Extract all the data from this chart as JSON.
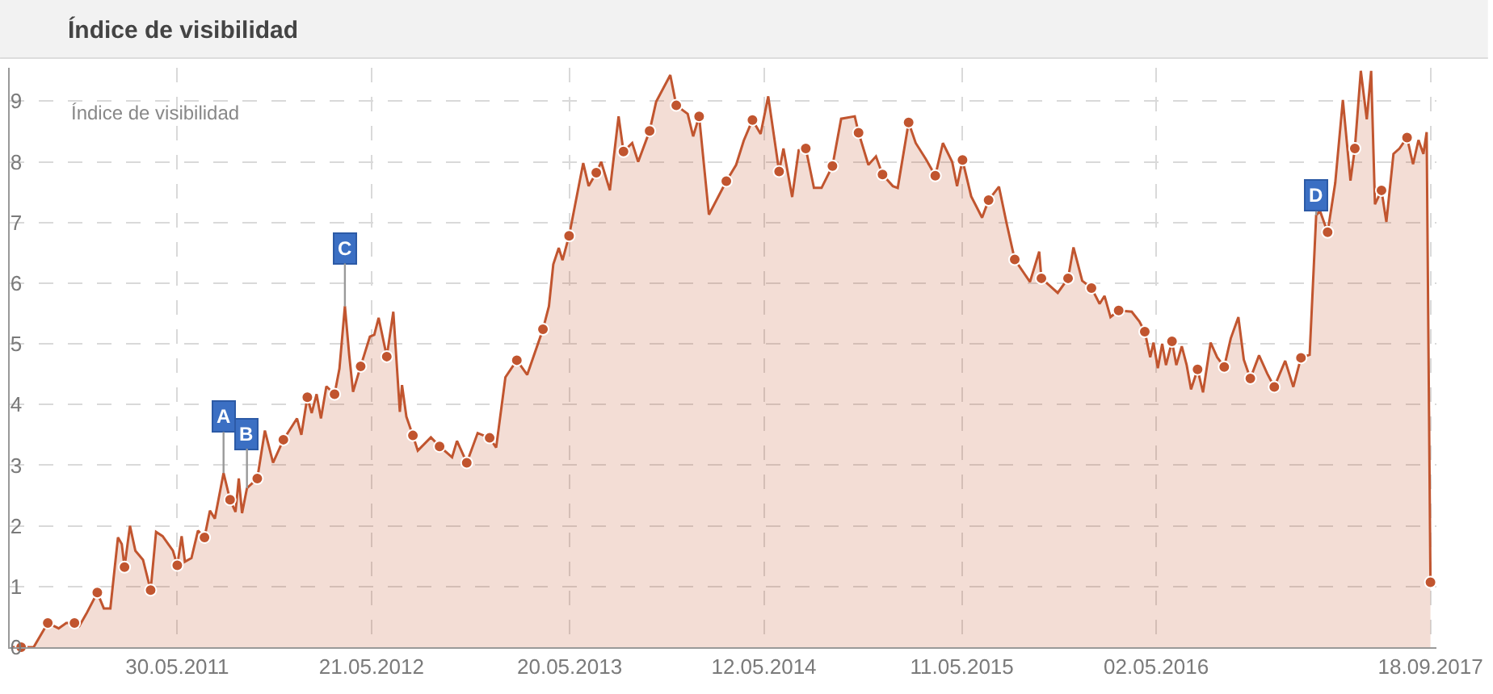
{
  "chart_data": {
    "type": "area",
    "title": "Índice de visibilidad",
    "annotations": [
      "Índice de visibilidad",
      {
        "text": "A",
        "x": "2011-08-23",
        "y": 2.87
      },
      {
        "text": "B",
        "x": "2011-10-05",
        "y": 2.62
      },
      {
        "text": "C",
        "x": "2012-04-02",
        "y": 5.62
      },
      {
        "text": "D",
        "x": "2017-02-20",
        "y": 7.12
      }
    ],
    "xlim": [
      "2010-07-26",
      "2017-09-29"
    ],
    "xticks": [
      {
        "value": "2011-05-30",
        "label": "30.05.2011"
      },
      {
        "value": "2012-05-21",
        "label": "21.05.2012"
      },
      {
        "value": "2013-05-20",
        "label": "20.05.2013"
      },
      {
        "value": "2014-05-12",
        "label": "12.05.2014"
      },
      {
        "value": "2015-05-11",
        "label": "11.05.2015"
      },
      {
        "value": "2016-05-02",
        "label": "02.05.2016"
      },
      {
        "value": "2017-09-18",
        "label": "18.09.2017"
      }
    ],
    "ylim": [
      0,
      9.55
    ],
    "yticks": [
      0,
      1,
      2,
      3,
      4,
      5,
      6,
      7,
      8,
      9
    ],
    "grid": true,
    "series": [
      {
        "color": "#c1552f",
        "x": [
          "2010-07-29",
          "2010-08-16",
          "2010-09-08",
          "2010-10-04",
          "2010-10-24",
          "2010-11-07",
          "2010-11-22",
          "2010-12-01",
          "2010-12-15",
          "2011-01-03",
          "2011-01-15",
          "2011-01-27",
          "2011-02-10",
          "2011-02-17",
          "2011-02-22",
          "2011-03-04",
          "2011-03-14",
          "2011-03-28",
          "2011-04-11",
          "2011-04-21",
          "2011-05-03",
          "2011-05-22",
          "2011-05-30",
          "2011-06-07",
          "2011-06-13",
          "2011-06-25",
          "2011-07-07",
          "2011-07-19",
          "2011-07-29",
          "2011-08-07",
          "2011-08-23",
          "2011-09-04",
          "2011-09-14",
          "2011-09-20",
          "2011-09-26",
          "2011-10-05",
          "2011-10-24",
          "2011-11-07",
          "2011-11-22",
          "2011-12-11",
          "2012-01-05",
          "2012-01-13",
          "2012-01-24",
          "2012-02-01",
          "2012-02-10",
          "2012-02-18",
          "2012-02-28",
          "2012-03-14",
          "2012-03-23",
          "2012-04-02",
          "2012-04-10",
          "2012-04-17",
          "2012-05-01",
          "2012-05-18",
          "2012-05-26",
          "2012-06-03",
          "2012-06-18",
          "2012-06-30",
          "2012-07-12",
          "2012-07-16",
          "2012-07-24",
          "2012-08-05",
          "2012-08-14",
          "2012-09-07",
          "2012-09-23",
          "2012-10-16",
          "2012-10-25",
          "2012-11-12",
          "2012-12-02",
          "2012-12-24",
          "2013-01-05",
          "2013-01-22",
          "2013-02-12",
          "2013-03-03",
          "2013-04-01",
          "2013-04-12",
          "2013-04-20",
          "2013-04-30",
          "2013-05-07",
          "2013-05-19",
          "2013-06-14",
          "2013-06-24",
          "2013-07-08",
          "2013-07-17",
          "2013-08-02",
          "2013-08-18",
          "2013-08-27",
          "2013-09-12",
          "2013-09-23",
          "2013-10-14",
          "2013-10-26",
          "2013-11-21",
          "2013-12-02",
          "2013-12-23",
          "2014-01-02",
          "2014-01-13",
          "2014-01-31",
          "2014-03-04",
          "2014-03-22",
          "2014-04-05",
          "2014-04-21",
          "2014-05-06",
          "2014-05-20",
          "2014-06-09",
          "2014-06-17",
          "2014-07-03",
          "2014-07-15",
          "2014-07-28",
          "2014-08-12",
          "2014-08-26",
          "2014-09-15",
          "2014-10-01",
          "2014-10-26",
          "2014-11-02",
          "2014-11-20",
          "2014-12-04",
          "2014-12-16",
          "2015-01-04",
          "2015-01-13",
          "2015-02-02",
          "2015-02-15",
          "2015-03-06",
          "2015-03-23",
          "2015-04-06",
          "2015-04-23",
          "2015-05-02",
          "2015-05-12",
          "2015-05-28",
          "2015-06-17",
          "2015-06-29",
          "2015-07-18",
          "2015-08-01",
          "2015-08-16",
          "2015-09-13",
          "2015-09-30",
          "2015-10-04",
          "2015-11-03",
          "2015-11-22",
          "2015-12-02",
          "2015-12-18",
          "2016-01-04",
          "2016-01-19",
          "2016-01-28",
          "2016-02-08",
          "2016-02-23",
          "2016-03-18",
          "2016-04-01",
          "2016-04-11",
          "2016-04-21",
          "2016-04-27",
          "2016-05-05",
          "2016-05-13",
          "2016-05-20",
          "2016-05-31",
          "2016-06-08",
          "2016-06-18",
          "2016-06-27",
          "2016-07-05",
          "2016-07-17",
          "2016-07-27",
          "2016-08-10",
          "2016-08-22",
          "2016-09-04",
          "2016-09-16",
          "2016-09-30",
          "2016-10-10",
          "2016-10-22",
          "2016-11-07",
          "2016-11-22",
          "2016-12-05",
          "2016-12-25",
          "2017-01-09",
          "2017-01-23",
          "2017-02-08",
          "2017-02-20",
          "2017-02-27",
          "2017-03-13",
          "2017-03-27",
          "2017-04-10",
          "2017-04-24",
          "2017-05-02",
          "2017-05-13",
          "2017-05-24",
          "2017-06-01",
          "2017-06-08",
          "2017-06-20",
          "2017-06-29",
          "2017-07-12",
          "2017-07-23",
          "2017-08-06",
          "2017-08-17",
          "2017-08-27",
          "2017-09-05",
          "2017-09-11",
          "2017-09-18"
        ],
        "values": [
          0,
          0,
          0,
          0.4,
          0.31,
          0.4,
          0.4,
          0.35,
          0.57,
          0.9,
          0.64,
          0.64,
          1.81,
          1.7,
          1.32,
          2.0,
          1.59,
          1.44,
          0.94,
          1.9,
          1.83,
          1.59,
          1.35,
          1.83,
          1.41,
          1.47,
          1.92,
          1.81,
          2.25,
          2.12,
          2.87,
          2.43,
          2.23,
          2.78,
          2.21,
          2.62,
          2.78,
          3.57,
          3.04,
          3.42,
          3.77,
          3.5,
          4.12,
          3.86,
          4.17,
          3.77,
          4.3,
          4.17,
          4.59,
          5.62,
          4.81,
          4.21,
          4.63,
          5.12,
          5.15,
          5.43,
          4.79,
          5.53,
          3.88,
          4.32,
          3.8,
          3.49,
          3.24,
          3.46,
          3.31,
          3.13,
          3.4,
          3.04,
          3.53,
          3.45,
          3.29,
          4.45,
          4.73,
          4.49,
          5.24,
          5.62,
          6.31,
          6.58,
          6.38,
          6.78,
          7.98,
          7.6,
          7.82,
          8.0,
          7.53,
          8.75,
          8.17,
          8.31,
          8.0,
          8.51,
          8.99,
          9.43,
          8.93,
          8.79,
          8.42,
          8.75,
          7.13,
          7.68,
          7.95,
          8.35,
          8.69,
          8.46,
          9.08,
          7.84,
          8.22,
          7.42,
          8.19,
          8.22,
          7.57,
          7.57,
          7.93,
          8.71,
          8.75,
          8.48,
          7.95,
          8.09,
          7.79,
          7.6,
          7.57,
          8.65,
          8.31,
          8.04,
          7.77,
          8.31,
          8.0,
          7.6,
          8.03,
          7.43,
          7.08,
          7.37,
          7.59,
          6.99,
          6.39,
          6.02,
          6.52,
          6.08,
          5.84,
          6.08,
          6.59,
          6.04,
          5.92,
          5.66,
          5.79,
          5.44,
          5.55,
          5.53,
          5.37,
          5.2,
          4.78,
          5.02,
          4.6,
          5.0,
          4.65,
          5.04,
          4.65,
          4.96,
          4.65,
          4.25,
          4.58,
          4.2,
          5.02,
          4.78,
          4.62,
          5.09,
          5.44,
          4.74,
          4.43,
          4.81,
          4.51,
          4.29,
          4.72,
          4.29,
          4.77,
          4.82,
          7.12,
          7.19,
          6.84,
          7.65,
          9.02,
          7.69,
          8.22,
          9.5,
          8.7,
          9.5,
          7.3,
          7.53,
          7.01,
          8.13,
          8.22,
          8.4,
          7.96,
          8.36,
          8.13,
          8.49,
          1.07
        ]
      },
      {
        "type": "scatter",
        "color": "#c1552f",
        "marker": "circle",
        "x": [
          "2010-08-16",
          "2010-10-04",
          "2010-11-22",
          "2011-01-03",
          "2011-02-22",
          "2011-04-11",
          "2011-05-30",
          "2011-07-19",
          "2011-09-04",
          "2011-10-24",
          "2011-12-11",
          "2012-01-24",
          "2012-03-14",
          "2012-05-01",
          "2012-06-18",
          "2012-08-05",
          "2012-09-23",
          "2012-11-12",
          "2012-12-24",
          "2013-02-12",
          "2013-04-01",
          "2013-05-19",
          "2013-07-08",
          "2013-08-27",
          "2013-10-14",
          "2013-12-02",
          "2014-01-13",
          "2014-03-04",
          "2014-04-21",
          "2014-06-09",
          "2014-07-28",
          "2014-09-15",
          "2014-11-02",
          "2014-12-16",
          "2015-02-02",
          "2015-03-23",
          "2015-05-12",
          "2015-06-29",
          "2015-08-16",
          "2015-10-04",
          "2015-11-22",
          "2016-01-04",
          "2016-02-23",
          "2016-04-11",
          "2016-05-31",
          "2016-07-17",
          "2016-09-04",
          "2016-10-22",
          "2016-12-05",
          "2017-01-23",
          "2017-03-13",
          "2017-05-02",
          "2017-06-20",
          "2017-08-06",
          "2017-09-18"
        ],
        "values": [
          0,
          0.4,
          0.4,
          0.9,
          1.32,
          0.94,
          1.35,
          1.81,
          2.43,
          2.78,
          3.42,
          4.12,
          4.17,
          4.63,
          4.79,
          3.49,
          3.31,
          3.04,
          3.45,
          4.73,
          5.24,
          6.78,
          7.82,
          8.17,
          8.51,
          8.93,
          8.75,
          7.68,
          8.69,
          7.84,
          8.22,
          7.93,
          8.48,
          7.79,
          8.65,
          7.77,
          8.03,
          7.37,
          6.39,
          6.08,
          6.08,
          5.92,
          5.55,
          5.2,
          5.04,
          4.58,
          4.62,
          4.43,
          4.29,
          4.77,
          6.84,
          8.22,
          7.53,
          8.4,
          1.07
        ]
      }
    ]
  }
}
